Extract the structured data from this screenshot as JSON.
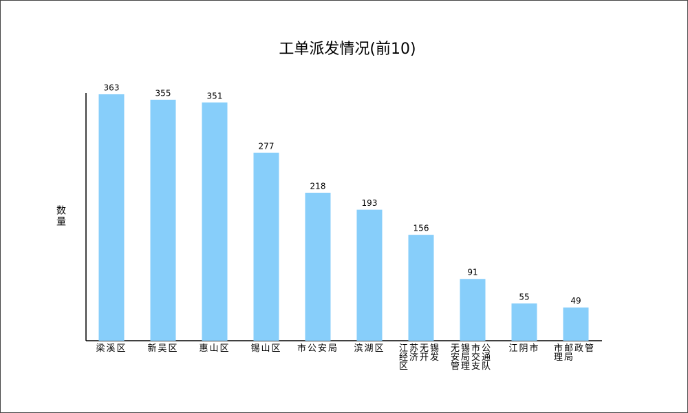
{
  "chart_data": {
    "type": "bar",
    "title": "工单派发情况(前10)",
    "y_label": "数量",
    "categories": [
      "梁溪区",
      "新吴区",
      "惠山区",
      "锡山区",
      "市公安局",
      "滨湖区",
      "江苏无锡经济开发区",
      "无锡市公安局交通管理支队",
      "江阴市",
      "市邮政管理局"
    ],
    "values": [
      363,
      355,
      351,
      277,
      218,
      193,
      156,
      91,
      55,
      49
    ],
    "color": "#87cefa",
    "ylim": [
      0,
      365
    ],
    "grid": false
  }
}
